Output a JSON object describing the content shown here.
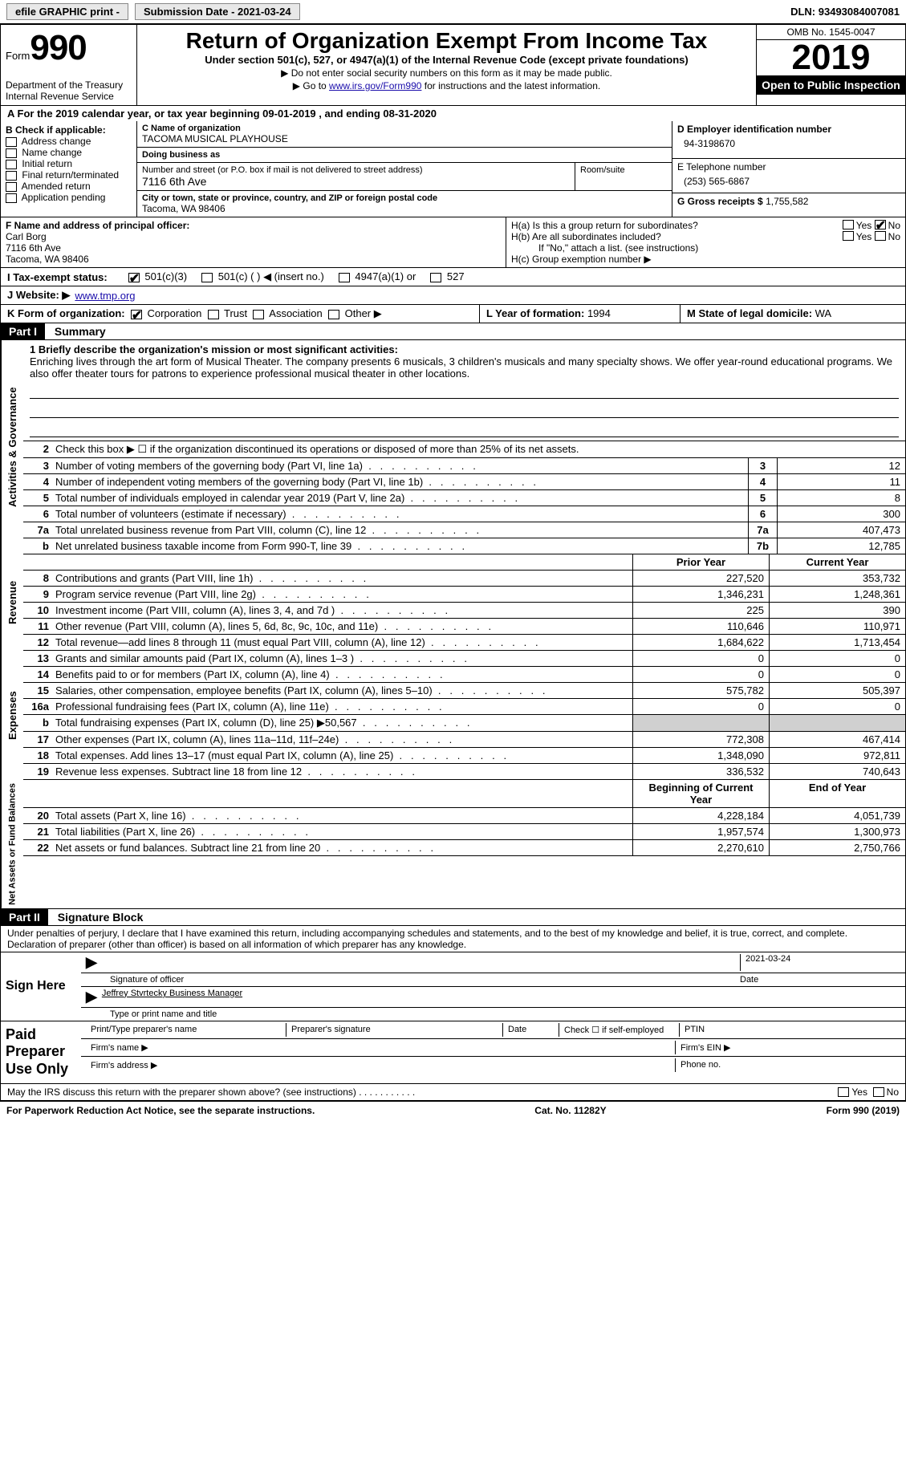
{
  "topbar": {
    "efile": "efile GRAPHIC print -",
    "subdate_label": "Submission Date - ",
    "subdate": "2021-03-24",
    "dln_label": "DLN: ",
    "dln": "93493084007081"
  },
  "header": {
    "form_label": "Form",
    "form_num": "990",
    "dept": "Department of the Treasury\nInternal Revenue Service",
    "title": "Return of Organization Exempt From Income Tax",
    "subtitle": "Under section 501(c), 527, or 4947(a)(1) of the Internal Revenue Code (except private foundations)",
    "note1": "▶ Do not enter social security numbers on this form as it may be made public.",
    "note2_pre": "▶ Go to ",
    "note2_link": "www.irs.gov/Form990",
    "note2_post": " for instructions and the latest information.",
    "omb": "OMB No. 1545-0047",
    "year": "2019",
    "inspect": "Open to Public Inspection"
  },
  "period": {
    "line": "For the 2019 calendar year, or tax year beginning 09-01-2019   , and ending 08-31-2020"
  },
  "boxB": {
    "hdr": "B Check if applicable:",
    "items": [
      "Address change",
      "Name change",
      "Initial return",
      "Final return/terminated",
      "Amended return",
      "Application pending"
    ]
  },
  "boxC": {
    "name_lbl": "C Name of organization",
    "name": "TACOMA MUSICAL PLAYHOUSE",
    "dba_lbl": "Doing business as",
    "dba": "",
    "addr_lbl": "Number and street (or P.O. box if mail is not delivered to street address)",
    "room_lbl": "Room/suite",
    "addr": "7116 6th Ave",
    "city_lbl": "City or town, state or province, country, and ZIP or foreign postal code",
    "city": "Tacoma, WA  98406"
  },
  "boxD": {
    "lbl": "D Employer identification number",
    "val": "94-3198670"
  },
  "boxE": {
    "lbl": "E Telephone number",
    "val": "(253) 565-6867"
  },
  "boxG": {
    "lbl": "G Gross receipts $ ",
    "val": "1,755,582"
  },
  "boxF": {
    "lbl": "F  Name and address of principal officer:",
    "name": "Carl Borg",
    "addr1": "7116 6th Ave",
    "addr2": "Tacoma, WA  98406"
  },
  "boxH": {
    "ha": "H(a)  Is this a group return for subordinates?",
    "hb": "H(b)  Are all subordinates included?",
    "hbnote": "If \"No,\" attach a list. (see instructions)",
    "hc": "H(c)  Group exemption number ▶",
    "yes": "Yes",
    "no": "No"
  },
  "boxI": {
    "lbl": "I  Tax-exempt status:",
    "opts": [
      "501(c)(3)",
      "501(c) (  ) ◀ (insert no.)",
      "4947(a)(1) or",
      "527"
    ]
  },
  "boxJ": {
    "lbl": "J  Website: ▶",
    "val": "www.tmp.org"
  },
  "boxK": {
    "lbl": "K Form of organization:",
    "opts": [
      "Corporation",
      "Trust",
      "Association",
      "Other ▶"
    ]
  },
  "boxL": {
    "lbl": "L Year of formation: ",
    "val": "1994"
  },
  "boxM": {
    "lbl": "M State of legal domicile: ",
    "val": "WA"
  },
  "part1": {
    "hdr": "Part I",
    "title": "Summary",
    "q1_lbl": "1  Briefly describe the organization's mission or most significant activities:",
    "q1": "Enriching lives through the art form of Musical Theater. The company presents 6 musicals, 3 children's musicals and many specialty shows. We offer year-round educational programs. We also offer theater tours for patrons to experience professional musical theater in other locations.",
    "q2": "Check this box ▶ ☐  if the organization discontinued its operations or disposed of more than 25% of its net assets.",
    "lines_gov": [
      {
        "n": "3",
        "d": "Number of voting members of the governing body (Part VI, line 1a)",
        "b": "3",
        "v": "12"
      },
      {
        "n": "4",
        "d": "Number of independent voting members of the governing body (Part VI, line 1b)",
        "b": "4",
        "v": "11"
      },
      {
        "n": "5",
        "d": "Total number of individuals employed in calendar year 2019 (Part V, line 2a)",
        "b": "5",
        "v": "8"
      },
      {
        "n": "6",
        "d": "Total number of volunteers (estimate if necessary)",
        "b": "6",
        "v": "300"
      },
      {
        "n": "7a",
        "d": "Total unrelated business revenue from Part VIII, column (C), line 12",
        "b": "7a",
        "v": "407,473"
      },
      {
        "n": "b",
        "d": "Net unrelated business taxable income from Form 990-T, line 39",
        "b": "7b",
        "v": "12,785"
      }
    ],
    "col_prior": "Prior Year",
    "col_curr": "Current Year",
    "lines_rev": [
      {
        "n": "8",
        "d": "Contributions and grants (Part VIII, line 1h)",
        "p": "227,520",
        "c": "353,732"
      },
      {
        "n": "9",
        "d": "Program service revenue (Part VIII, line 2g)",
        "p": "1,346,231",
        "c": "1,248,361"
      },
      {
        "n": "10",
        "d": "Investment income (Part VIII, column (A), lines 3, 4, and 7d )",
        "p": "225",
        "c": "390"
      },
      {
        "n": "11",
        "d": "Other revenue (Part VIII, column (A), lines 5, 6d, 8c, 9c, 10c, and 11e)",
        "p": "110,646",
        "c": "110,971"
      },
      {
        "n": "12",
        "d": "Total revenue—add lines 8 through 11 (must equal Part VIII, column (A), line 12)",
        "p": "1,684,622",
        "c": "1,713,454"
      }
    ],
    "lines_exp": [
      {
        "n": "13",
        "d": "Grants and similar amounts paid (Part IX, column (A), lines 1–3 )",
        "p": "0",
        "c": "0"
      },
      {
        "n": "14",
        "d": "Benefits paid to or for members (Part IX, column (A), line 4)",
        "p": "0",
        "c": "0"
      },
      {
        "n": "15",
        "d": "Salaries, other compensation, employee benefits (Part IX, column (A), lines 5–10)",
        "p": "575,782",
        "c": "505,397"
      },
      {
        "n": "16a",
        "d": "Professional fundraising fees (Part IX, column (A), line 11e)",
        "p": "0",
        "c": "0"
      },
      {
        "n": "b",
        "d": "Total fundraising expenses (Part IX, column (D), line 25) ▶50,567",
        "p": "",
        "c": "",
        "shade": true
      },
      {
        "n": "17",
        "d": "Other expenses (Part IX, column (A), lines 11a–11d, 11f–24e)",
        "p": "772,308",
        "c": "467,414"
      },
      {
        "n": "18",
        "d": "Total expenses. Add lines 13–17 (must equal Part IX, column (A), line 25)",
        "p": "1,348,090",
        "c": "972,811"
      },
      {
        "n": "19",
        "d": "Revenue less expenses. Subtract line 18 from line 12",
        "p": "336,532",
        "c": "740,643"
      }
    ],
    "col_beg": "Beginning of Current Year",
    "col_end": "End of Year",
    "lines_net": [
      {
        "n": "20",
        "d": "Total assets (Part X, line 16)",
        "p": "4,228,184",
        "c": "4,051,739"
      },
      {
        "n": "21",
        "d": "Total liabilities (Part X, line 26)",
        "p": "1,957,574",
        "c": "1,300,973"
      },
      {
        "n": "22",
        "d": "Net assets or fund balances. Subtract line 21 from line 20",
        "p": "2,270,610",
        "c": "2,750,766"
      }
    ],
    "tab_gov": "Activities & Governance",
    "tab_rev": "Revenue",
    "tab_exp": "Expenses",
    "tab_net": "Net Assets or Fund Balances"
  },
  "part2": {
    "hdr": "Part II",
    "title": "Signature Block",
    "decl": "Under penalties of perjury, I declare that I have examined this return, including accompanying schedules and statements, and to the best of my knowledge and belief, it is true, correct, and complete. Declaration of preparer (other than officer) is based on all information of which preparer has any knowledge.",
    "sign_here": "Sign Here",
    "sig_officer": "Signature of officer",
    "sig_date": "Date",
    "sig_date_val": "2021-03-24",
    "sig_name": "Jeffrey Stvrtecky  Business Manager",
    "sig_name_lbl": "Type or print name and title",
    "paid": "Paid Preparer Use Only",
    "p_name": "Print/Type preparer's name",
    "p_sig": "Preparer's signature",
    "p_date": "Date",
    "p_check": "Check ☐ if self-employed",
    "p_ptin": "PTIN",
    "p_firm": "Firm's name  ▶",
    "p_ein": "Firm's EIN ▶",
    "p_addr": "Firm's address ▶",
    "p_phone": "Phone no.",
    "discuss": "May the IRS discuss this return with the preparer shown above? (see instructions)   .   .   .   .   .   .   .   .   .   .   .",
    "yes": "Yes",
    "no": "No"
  },
  "footer": {
    "pra": "For Paperwork Reduction Act Notice, see the separate instructions.",
    "cat": "Cat. No. 11282Y",
    "form": "Form 990 (2019)"
  }
}
